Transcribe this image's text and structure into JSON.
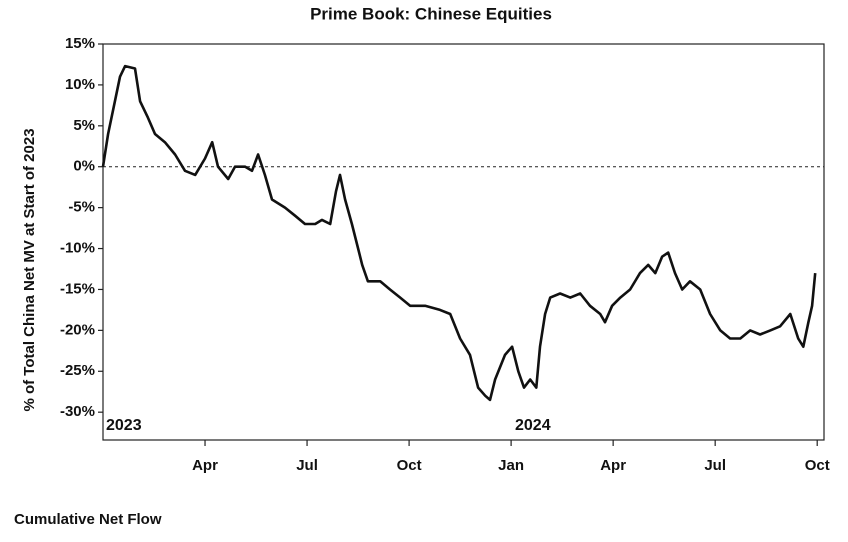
{
  "chart_data": {
    "type": "line",
    "title": "Prime Book: Chinese Equities",
    "ylabel": "% of Total China Net MV at Start of 2023",
    "footer": "Cumulative Net Flow",
    "annotations": [
      "2023",
      "2024"
    ],
    "hline": 0,
    "xlim": [
      0,
      21.2
    ],
    "xticks": [
      {
        "value": 3,
        "label": "Apr"
      },
      {
        "value": 6,
        "label": "Jul"
      },
      {
        "value": 9,
        "label": "Oct"
      },
      {
        "value": 12,
        "label": "Jan"
      },
      {
        "value": 15,
        "label": "Apr"
      },
      {
        "value": 18,
        "label": "Jul"
      },
      {
        "value": 21,
        "label": "Oct"
      }
    ],
    "ylim": [
      -33.4,
      15
    ],
    "yticks": [
      {
        "value": 15,
        "label": "15%"
      },
      {
        "value": 10,
        "label": "10%"
      },
      {
        "value": 5,
        "label": "5%"
      },
      {
        "value": 0,
        "label": "0%"
      },
      {
        "value": -5,
        "label": "-5%"
      },
      {
        "value": -10,
        "label": "-10%"
      },
      {
        "value": -15,
        "label": "-15%"
      },
      {
        "value": -20,
        "label": "-20%"
      },
      {
        "value": -25,
        "label": "-25%"
      },
      {
        "value": -30,
        "label": "-30%"
      }
    ],
    "x": [
      0,
      0.15,
      0.35,
      0.5,
      0.65,
      0.94,
      1.09,
      1.32,
      1.53,
      1.82,
      2.12,
      2.41,
      2.71,
      3.0,
      3.21,
      3.38,
      3.68,
      3.88,
      4.18,
      4.38,
      4.56,
      4.76,
      4.97,
      5.35,
      5.65,
      5.94,
      6.24,
      6.44,
      6.68,
      6.85,
      6.97,
      7.12,
      7.32,
      7.5,
      7.62,
      7.79,
      8.15,
      8.44,
      8.74,
      9.03,
      9.47,
      9.91,
      10.21,
      10.5,
      10.79,
      11.03,
      11.24,
      11.38,
      11.53,
      11.82,
      12.03,
      12.21,
      12.38,
      12.56,
      12.74,
      12.85,
      13.0,
      13.15,
      13.44,
      13.74,
      14.03,
      14.32,
      14.62,
      14.76,
      14.97,
      15.21,
      15.5,
      15.79,
      16.03,
      16.24,
      16.44,
      16.62,
      16.82,
      17.03,
      17.26,
      17.56,
      17.85,
      18.15,
      18.44,
      18.74,
      19.03,
      19.32,
      19.62,
      19.91,
      20.21,
      20.44,
      20.59,
      20.74,
      20.85,
      20.94
    ],
    "series": [
      {
        "color": "#111111",
        "values": [
          0,
          4,
          8,
          11,
          12.3,
          12,
          8,
          6,
          4,
          3,
          1.5,
          -0.5,
          -1,
          1,
          3,
          0,
          -1.5,
          0,
          0,
          -0.5,
          1.5,
          -1,
          -4,
          -5,
          -6,
          -7,
          -7,
          -6.5,
          -7,
          -3,
          -1,
          -4,
          -7,
          -10,
          -12,
          -14,
          -14,
          -15,
          -16,
          -17,
          -17,
          -17.5,
          -18,
          -21,
          -23,
          -27,
          -28,
          -28.5,
          -26,
          -23,
          -22,
          -25,
          -27,
          -26,
          -27,
          -22,
          -18,
          -16,
          -15.5,
          -16,
          -15.5,
          -17,
          -18,
          -19,
          -17,
          -16,
          -15,
          -13,
          -12,
          -13,
          -11,
          -10.5,
          -13,
          -15,
          -14,
          -15,
          -18,
          -20,
          -21,
          -21,
          -20,
          -20.5,
          -20,
          -19.5,
          -18,
          -21,
          -22,
          -19,
          -17,
          -13
        ]
      }
    ]
  }
}
